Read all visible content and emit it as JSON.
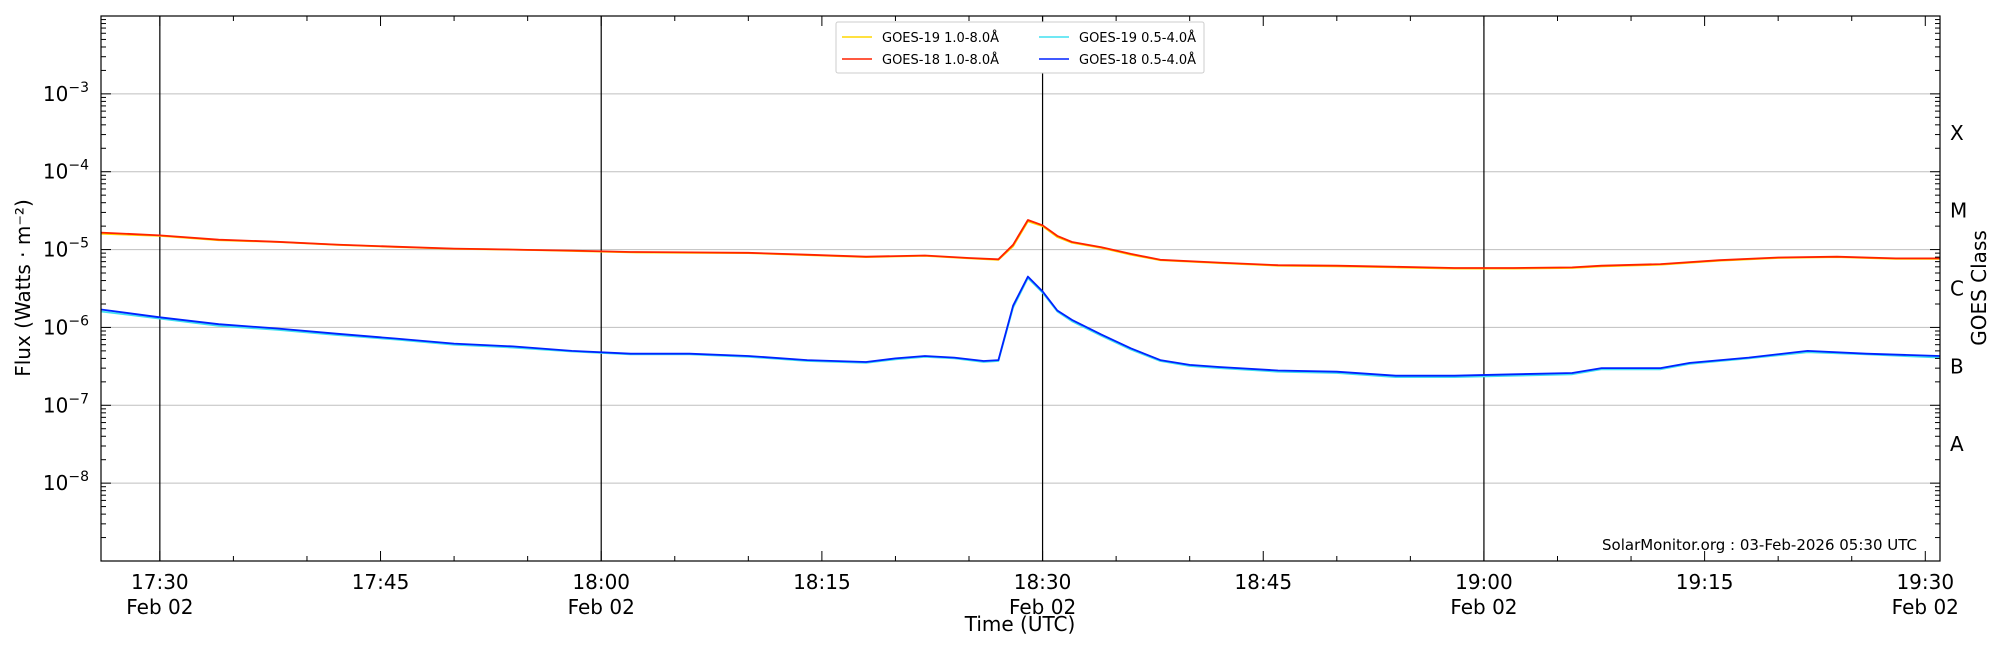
{
  "chart_data": {
    "type": "line",
    "ylabel": "Flux (Watts · m⁻²)",
    "xlabel": "Time (UTC)",
    "right_label": "GOES Class",
    "watermark": "SolarMonitor.org : 03-Feb-2026 05:30 UTC",
    "y_scale": "log",
    "ylim": [
      1e-09,
      0.01
    ],
    "xlim": [
      "2026-02-02 17:26",
      "2026-02-02 19:31"
    ],
    "y_ticks": [
      {
        "value": 0.001,
        "base": "10",
        "exp": "−3"
      },
      {
        "value": 0.0001,
        "base": "10",
        "exp": "−4"
      },
      {
        "value": 1e-05,
        "base": "10",
        "exp": "−5"
      },
      {
        "value": 1e-06,
        "base": "10",
        "exp": "−6"
      },
      {
        "value": 1e-07,
        "base": "10",
        "exp": "−7"
      },
      {
        "value": 1e-08,
        "base": "10",
        "exp": "−8"
      }
    ],
    "x_ticks": [
      {
        "time": "17:30",
        "line1": "17:30",
        "line2": "Feb 02"
      },
      {
        "time": "17:45",
        "line1": "17:45",
        "line2": ""
      },
      {
        "time": "18:00",
        "line1": "18:00",
        "line2": "Feb 02"
      },
      {
        "time": "18:15",
        "line1": "18:15",
        "line2": ""
      },
      {
        "time": "18:30",
        "line1": "18:30",
        "line2": "Feb 02"
      },
      {
        "time": "18:45",
        "line1": "18:45",
        "line2": ""
      },
      {
        "time": "19:00",
        "line1": "19:00",
        "line2": "Feb 02"
      },
      {
        "time": "19:15",
        "line1": "19:15",
        "line2": ""
      },
      {
        "time": "19:30",
        "line1": "19:30",
        "line2": "Feb 02"
      }
    ],
    "vertical_lines": [
      "17:30",
      "18:00",
      "18:30",
      "19:00"
    ],
    "goes_classes": [
      {
        "label": "X",
        "value": 0.000316
      },
      {
        "label": "M",
        "value": 3.16e-05
      },
      {
        "label": "C",
        "value": 3.16e-06
      },
      {
        "label": "B",
        "value": 3.16e-07
      },
      {
        "label": "A",
        "value": 3.16e-08
      }
    ],
    "grid": true,
    "legend_position": "top-center",
    "legend": [
      {
        "name": "GOES-19 1.0-8.0Å",
        "color": "#ffd700"
      },
      {
        "name": "GOES-19 0.5-4.0Å",
        "color": "#40e0f0"
      },
      {
        "name": "GOES-18 1.0-8.0Å",
        "color": "#ff2200"
      },
      {
        "name": "GOES-18 0.5-4.0Å",
        "color": "#0022ff"
      }
    ],
    "series": [
      {
        "name": "GOES-19 1.0-8.0Å",
        "color": "#ffd700",
        "points": [
          [
            "17:26",
            1.6e-05
          ],
          [
            "17:30",
            1.5e-05
          ],
          [
            "17:34",
            1.32e-05
          ],
          [
            "17:38",
            1.25e-05
          ],
          [
            "17:42",
            1.15e-05
          ],
          [
            "17:46",
            1.08e-05
          ],
          [
            "17:50",
            1.02e-05
          ],
          [
            "17:54",
            1e-05
          ],
          [
            "17:58",
            9.6e-06
          ],
          [
            "18:02",
            9.2e-06
          ],
          [
            "18:06",
            9.1e-06
          ],
          [
            "18:10",
            9e-06
          ],
          [
            "18:14",
            8.5e-06
          ],
          [
            "18:18",
            8e-06
          ],
          [
            "18:22",
            8.3e-06
          ],
          [
            "18:25",
            7.7e-06
          ],
          [
            "18:27",
            7.4e-06
          ],
          [
            "18:28",
            1.1e-05
          ],
          [
            "18:29",
            2.3e-05
          ],
          [
            "18:30",
            2e-05
          ],
          [
            "18:31",
            1.45e-05
          ],
          [
            "18:32",
            1.22e-05
          ],
          [
            "18:34",
            1.05e-05
          ],
          [
            "18:36",
            8.6e-06
          ],
          [
            "18:38",
            7.3e-06
          ],
          [
            "18:42",
            6.7e-06
          ],
          [
            "18:46",
            6.2e-06
          ],
          [
            "18:50",
            6.1e-06
          ],
          [
            "18:54",
            5.9e-06
          ],
          [
            "18:58",
            5.7e-06
          ],
          [
            "19:02",
            5.7e-06
          ],
          [
            "19:06",
            5.8e-06
          ],
          [
            "19:08",
            6.1e-06
          ],
          [
            "19:12",
            6.4e-06
          ],
          [
            "19:16",
            7.2e-06
          ],
          [
            "19:20",
            7.8e-06
          ],
          [
            "19:24",
            8e-06
          ],
          [
            "19:28",
            7.6e-06
          ],
          [
            "19:31",
            7.6e-06
          ]
        ]
      },
      {
        "name": "GOES-18 1.0-8.0Å",
        "color": "#ff2200",
        "points": [
          [
            "17:26",
            1.65e-05
          ],
          [
            "17:30",
            1.52e-05
          ],
          [
            "17:34",
            1.34e-05
          ],
          [
            "17:38",
            1.26e-05
          ],
          [
            "17:42",
            1.16e-05
          ],
          [
            "17:46",
            1.09e-05
          ],
          [
            "17:50",
            1.03e-05
          ],
          [
            "17:54",
            1e-05
          ],
          [
            "17:58",
            9.7e-06
          ],
          [
            "18:02",
            9.3e-06
          ],
          [
            "18:06",
            9.2e-06
          ],
          [
            "18:10",
            9.1e-06
          ],
          [
            "18:14",
            8.6e-06
          ],
          [
            "18:18",
            8.1e-06
          ],
          [
            "18:22",
            8.4e-06
          ],
          [
            "18:25",
            7.8e-06
          ],
          [
            "18:27",
            7.5e-06
          ],
          [
            "18:28",
            1.15e-05
          ],
          [
            "18:29",
            2.4e-05
          ],
          [
            "18:30",
            2.05e-05
          ],
          [
            "18:31",
            1.5e-05
          ],
          [
            "18:32",
            1.25e-05
          ],
          [
            "18:34",
            1.07e-05
          ],
          [
            "18:36",
            8.8e-06
          ],
          [
            "18:38",
            7.4e-06
          ],
          [
            "18:42",
            6.8e-06
          ],
          [
            "18:46",
            6.3e-06
          ],
          [
            "18:50",
            6.2e-06
          ],
          [
            "18:54",
            6e-06
          ],
          [
            "18:58",
            5.8e-06
          ],
          [
            "19:02",
            5.8e-06
          ],
          [
            "19:06",
            5.9e-06
          ],
          [
            "19:08",
            6.2e-06
          ],
          [
            "19:12",
            6.5e-06
          ],
          [
            "19:16",
            7.3e-06
          ],
          [
            "19:20",
            7.9e-06
          ],
          [
            "19:24",
            8.1e-06
          ],
          [
            "19:28",
            7.7e-06
          ],
          [
            "19:31",
            7.7e-06
          ]
        ]
      },
      {
        "name": "GOES-19 0.5-4.0Å",
        "color": "#40e0f0",
        "points": [
          [
            "17:26",
            1.6e-06
          ],
          [
            "17:30",
            1.3e-06
          ],
          [
            "17:34",
            1.05e-06
          ],
          [
            "17:38",
            9.3e-07
          ],
          [
            "17:42",
            8e-07
          ],
          [
            "17:46",
            7e-07
          ],
          [
            "17:50",
            6e-07
          ],
          [
            "17:54",
            5.5e-07
          ],
          [
            "17:58",
            4.9e-07
          ],
          [
            "18:02",
            4.5e-07
          ],
          [
            "18:06",
            4.5e-07
          ],
          [
            "18:10",
            4.2e-07
          ],
          [
            "18:14",
            3.7e-07
          ],
          [
            "18:18",
            3.5e-07
          ],
          [
            "18:20",
            3.9e-07
          ],
          [
            "18:22",
            4.2e-07
          ],
          [
            "18:24",
            4e-07
          ],
          [
            "18:26",
            3.6e-07
          ],
          [
            "18:27",
            3.7e-07
          ],
          [
            "18:28",
            1.8e-06
          ],
          [
            "18:29",
            4.3e-06
          ],
          [
            "18:30",
            2.8e-06
          ],
          [
            "18:31",
            1.6e-06
          ],
          [
            "18:32",
            1.2e-06
          ],
          [
            "18:34",
            7.8e-07
          ],
          [
            "18:36",
            5.2e-07
          ],
          [
            "18:38",
            3.7e-07
          ],
          [
            "18:40",
            3.2e-07
          ],
          [
            "18:42",
            3e-07
          ],
          [
            "18:46",
            2.7e-07
          ],
          [
            "18:50",
            2.6e-07
          ],
          [
            "18:54",
            2.3e-07
          ],
          [
            "18:58",
            2.3e-07
          ],
          [
            "19:02",
            2.4e-07
          ],
          [
            "19:06",
            2.5e-07
          ],
          [
            "19:08",
            2.9e-07
          ],
          [
            "19:12",
            2.9e-07
          ],
          [
            "19:14",
            3.4e-07
          ],
          [
            "19:18",
            4e-07
          ],
          [
            "19:22",
            4.8e-07
          ],
          [
            "19:26",
            4.5e-07
          ],
          [
            "19:31",
            4.1e-07
          ]
        ]
      },
      {
        "name": "GOES-18 0.5-4.0Å",
        "color": "#0022ff",
        "points": [
          [
            "17:26",
            1.7e-06
          ],
          [
            "17:30",
            1.35e-06
          ],
          [
            "17:34",
            1.1e-06
          ],
          [
            "17:38",
            9.7e-07
          ],
          [
            "17:42",
            8.3e-07
          ],
          [
            "17:46",
            7.2e-07
          ],
          [
            "17:50",
            6.2e-07
          ],
          [
            "17:54",
            5.7e-07
          ],
          [
            "17:58",
            5e-07
          ],
          [
            "18:02",
            4.6e-07
          ],
          [
            "18:06",
            4.6e-07
          ],
          [
            "18:10",
            4.3e-07
          ],
          [
            "18:14",
            3.8e-07
          ],
          [
            "18:18",
            3.6e-07
          ],
          [
            "18:20",
            4e-07
          ],
          [
            "18:22",
            4.3e-07
          ],
          [
            "18:24",
            4.1e-07
          ],
          [
            "18:26",
            3.7e-07
          ],
          [
            "18:27",
            3.8e-07
          ],
          [
            "18:28",
            1.9e-06
          ],
          [
            "18:29",
            4.5e-06
          ],
          [
            "18:30",
            2.9e-06
          ],
          [
            "18:31",
            1.65e-06
          ],
          [
            "18:32",
            1.25e-06
          ],
          [
            "18:34",
            8.1e-07
          ],
          [
            "18:36",
            5.4e-07
          ],
          [
            "18:38",
            3.8e-07
          ],
          [
            "18:40",
            3.3e-07
          ],
          [
            "18:42",
            3.1e-07
          ],
          [
            "18:46",
            2.8e-07
          ],
          [
            "18:50",
            2.7e-07
          ],
          [
            "18:54",
            2.4e-07
          ],
          [
            "18:58",
            2.4e-07
          ],
          [
            "19:02",
            2.5e-07
          ],
          [
            "19:06",
            2.6e-07
          ],
          [
            "19:08",
            3e-07
          ],
          [
            "19:12",
            3e-07
          ],
          [
            "19:14",
            3.5e-07
          ],
          [
            "19:18",
            4.1e-07
          ],
          [
            "19:22",
            5e-07
          ],
          [
            "19:26",
            4.6e-07
          ],
          [
            "19:31",
            4.3e-07
          ]
        ]
      }
    ]
  }
}
